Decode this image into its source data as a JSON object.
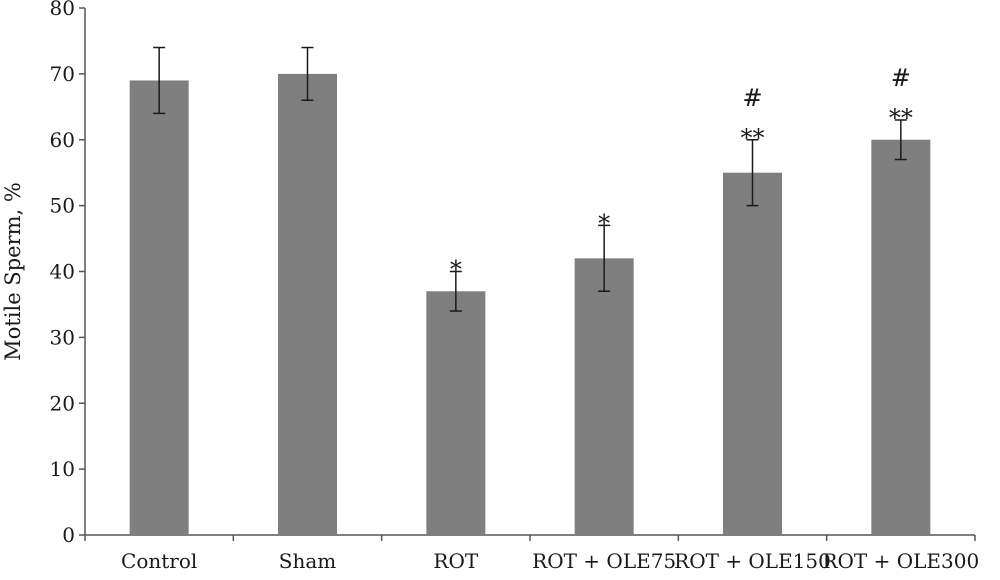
{
  "chart_data": {
    "type": "bar",
    "title": "",
    "xlabel": "",
    "ylabel": "Motile Sperm, %",
    "ylim": [
      0,
      80
    ],
    "yticks": [
      0,
      10,
      20,
      30,
      40,
      50,
      60,
      70,
      80
    ],
    "grid": false,
    "bar_color": "#7f7f7f",
    "categories": [
      "Control",
      "Sham",
      "ROT",
      "ROT + OLE75",
      "ROT + OLE150",
      "ROT + OLE300"
    ],
    "values": [
      69,
      70,
      37,
      42,
      55,
      60
    ],
    "error_low": [
      64,
      66,
      34,
      37,
      50,
      57
    ],
    "error_high": [
      74,
      74,
      40,
      47,
      60,
      63
    ],
    "annotations": [
      {
        "category": "ROT",
        "lines": [
          "*"
        ]
      },
      {
        "category": "ROT + OLE75",
        "lines": [
          "*"
        ]
      },
      {
        "category": "ROT + OLE150",
        "lines": [
          "#",
          "**"
        ]
      },
      {
        "category": "ROT + OLE300",
        "lines": [
          "#",
          "**"
        ]
      }
    ]
  }
}
